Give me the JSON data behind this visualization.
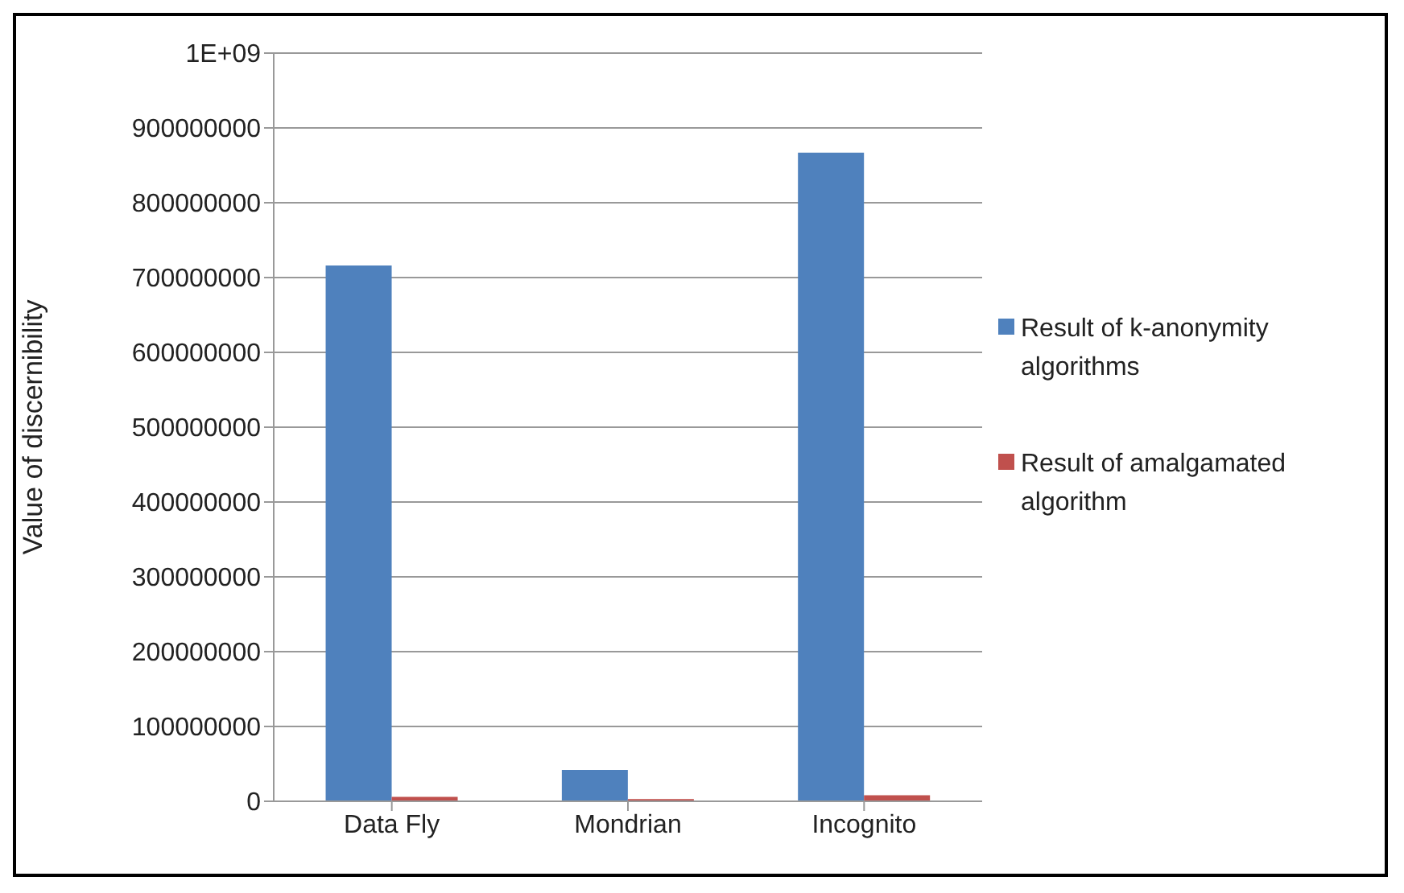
{
  "chart_data": {
    "type": "bar",
    "ylabel": "Value of discernibility",
    "categories": [
      "Data Fly",
      "Mondrian",
      "Incognito"
    ],
    "series": [
      {
        "name": "Result of k-anonymity algorithms",
        "color": "#4f81bd",
        "values": [
          716000000,
          42000000,
          867000000
        ]
      },
      {
        "name": "Result of amalgamated algorithm",
        "color": "#c0504d",
        "values": [
          6000000,
          3000000,
          8000000
        ]
      }
    ],
    "ylim": [
      0,
      1000000000
    ],
    "yticks": [
      0,
      100000000,
      200000000,
      300000000,
      400000000,
      500000000,
      600000000,
      700000000,
      800000000,
      {
        "value": 900000000,
        "label": "900000000"
      },
      {
        "value": 1000000000,
        "label": "1E+09"
      }
    ],
    "grid": "y",
    "legend": "right"
  }
}
